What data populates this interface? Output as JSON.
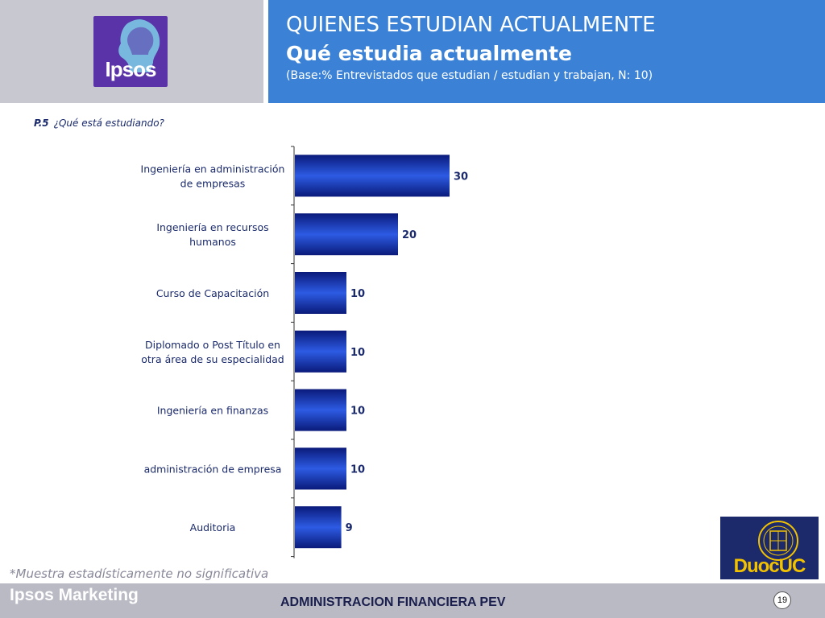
{
  "header": {
    "logo_text": "Ipsos",
    "title_line1": "QUIENES ESTUDIAN ACTUALMENTE",
    "title_line2": "Qué estudia actualmente",
    "subtitle": "(Base:% Entrevistados que  estudian / estudian y trabajan, N: 10)"
  },
  "question": {
    "code": "P.5",
    "text": "¿Qué está estudiando?"
  },
  "chart_data": {
    "type": "bar",
    "orientation": "horizontal",
    "categories": [
      [
        "Ingeniería en administración",
        "de empresas"
      ],
      [
        "Ingeniería en recursos",
        "humanos"
      ],
      [
        "Curso de Capacitación"
      ],
      [
        "Diplomado o Post Título en",
        "otra área de su especialidad"
      ],
      [
        "Ingeniería en finanzas"
      ],
      [
        "administración de empresa"
      ],
      [
        "Auditoria"
      ]
    ],
    "values": [
      30,
      20,
      10,
      10,
      10,
      10,
      9
    ],
    "xlim": [
      0,
      100
    ],
    "bar_color_dark": "#0a1a7a",
    "bar_color_light": "#2d5be3",
    "label_color": "#1a2a6c"
  },
  "note": "*Muestra estadísticamente no significativa",
  "footer": {
    "brand": "Ipsos Marketing",
    "center_text": "ADMINISTRACION FINANCIERA PEV",
    "page_number": "19"
  },
  "duoc_logo_text": "DuocUC",
  "colors": {
    "header_blue": "#3b82d6",
    "header_gray": "#c7c8d0",
    "footer_gray": "#b9bac4",
    "ipsos_purple": "#5a33a8",
    "duoc_navy": "#1c2a6b",
    "duoc_yellow": "#f2c200"
  }
}
